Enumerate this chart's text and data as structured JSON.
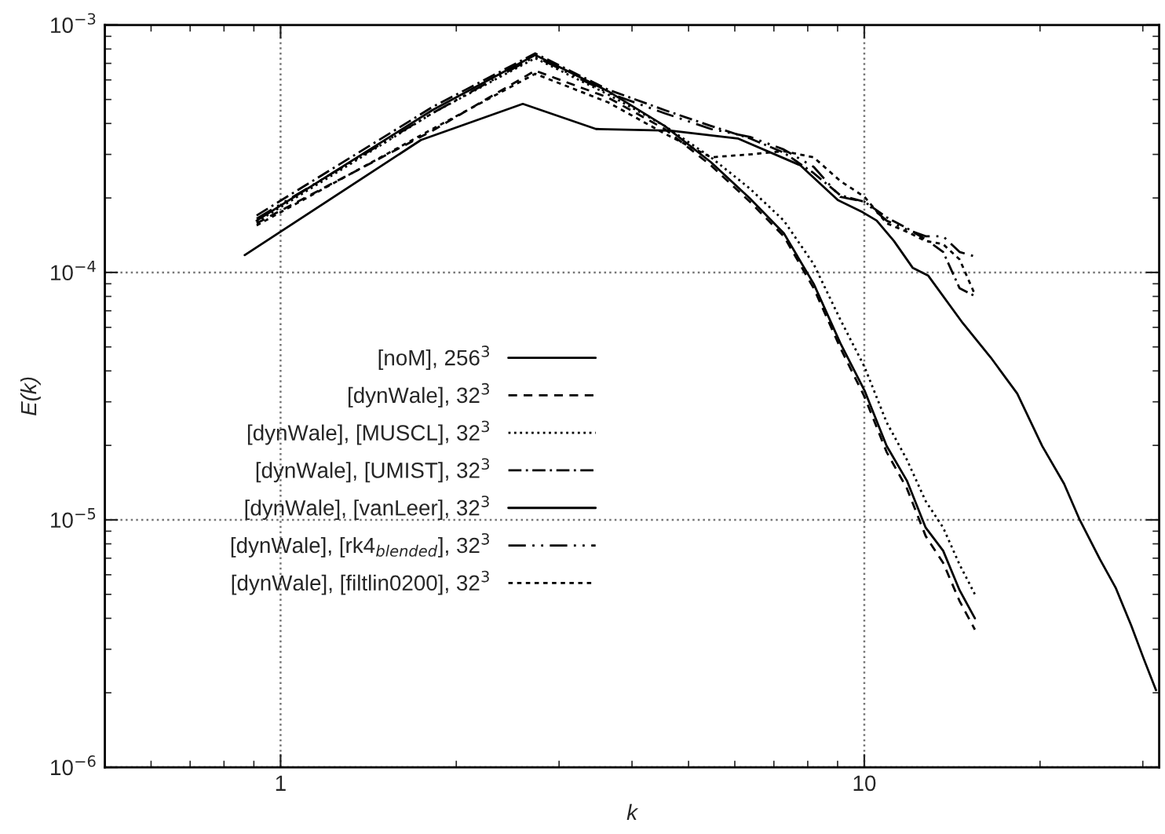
{
  "chart_data": {
    "type": "line",
    "xlabel": "k",
    "ylabel": "E(k)",
    "log": "xy",
    "grid": true,
    "legend": "left",
    "xlim": [
      0.5,
      32
    ],
    "ylim": [
      1e-06,
      0.001
    ],
    "xticks": [
      1,
      10
    ],
    "yticks": [
      {
        "value": 1e-06,
        "label": "10$^{−6}$"
      },
      {
        "value": 1e-05,
        "label": "10$^{−5}$"
      },
      {
        "value": 0.0001,
        "label": "10$^{−4}$"
      },
      {
        "value": 0.001,
        "label": "10$^{−3}$"
      }
    ],
    "x": [
      0.91,
      1.82,
      2.73,
      3.64,
      4.55,
      5.46,
      6.37,
      7.28,
      8.19,
      9.1,
      10.01,
      10.92,
      11.83,
      12.74,
      13.65,
      14.56,
      15.47
    ],
    "series": [
      {
        "name": "[noM], 256$^{3}$",
        "color": "#000000",
        "line_style": "solid",
        "x": [
          0.868,
          1.74,
          2.6,
          3.47,
          4.66,
          6.07,
          7.77,
          9.01,
          9.94,
          10.5,
          11.24,
          12.1,
          12.87,
          14.74,
          16.47,
          18.28,
          20.17,
          21.99,
          23.39,
          25.33,
          26.95,
          28.66,
          30.1,
          31.6
        ],
        "values": [
          0.0001175,
          0.000343,
          0.00048,
          0.00038,
          0.000374,
          0.000348,
          0.000271,
          0.000196,
          0.000175,
          0.000162,
          0.000134,
          0.0001045,
          9.7e-05,
          6.25e-05,
          4.53e-05,
          3.24e-05,
          1.99e-05,
          1.4e-05,
          1e-05,
          6.93e-06,
          5.32e-06,
          3.74e-06,
          2.75e-06,
          2.05e-06
        ]
      },
      {
        "name": "[dynWale], 32$^{3}$",
        "color": "#000000",
        "line_style": "dashed",
        "values": [
          0.000158,
          0.000374,
          0.000654,
          0.000509,
          0.00038,
          0.000271,
          0.000193,
          0.00014,
          8.64e-05,
          4.95e-05,
          3.14e-05,
          1.88e-05,
          1.34e-05,
          8.6e-06,
          6.7e-06,
          4.7e-06,
          3.6e-06
        ]
      },
      {
        "name": "[dynWale], [MUSCL], 32$^{3}$",
        "color": "#000000",
        "line_style": "dotted",
        "values": [
          0.00016,
          0.00044,
          0.000735,
          0.000524,
          0.000391,
          0.000292,
          0.000218,
          0.000162,
          0.000108,
          6.44e-05,
          4.15e-05,
          2.48e-05,
          1.75e-05,
          1.19e-05,
          9.3e-06,
          6.6e-06,
          5e-06
        ]
      },
      {
        "name": "[dynWale], [UMIST], 32$^{3}$",
        "color": "#000000",
        "line_style": "dashed",
        "values": [
          0.00017,
          0.000466,
          0.000768,
          0.000548,
          0.000453,
          0.000391,
          0.000348,
          0.000305,
          0.000252,
          0.000205,
          0.000193,
          0.000167,
          0.000151,
          0.000136,
          0.000121,
          8.64e-05,
          8.02e-05
        ]
      },
      {
        "name": "[dynWale], [vanLeer], 32$^{3}$",
        "color": "#000000",
        "line_style": "solid",
        "values": [
          0.000162,
          0.000453,
          0.000757,
          0.00054,
          0.000391,
          0.000279,
          0.000199,
          0.000144,
          9e-05,
          5.17e-05,
          3.33e-05,
          1.99e-05,
          1.44e-05,
          9.3e-06,
          7.5e-06,
          5.2e-06,
          4e-06
        ]
      },
      {
        "name": "[dynWale], [rk4$_{blended}$], 32$^{3}$",
        "color": "#000000",
        "line_style": "dashed",
        "values": [
          0.000165,
          0.00044,
          0.000746,
          0.000532,
          0.00044,
          0.00038,
          0.000353,
          0.000314,
          0.000267,
          0.000202,
          0.000193,
          0.000162,
          0.000149,
          0.00014,
          0.00014,
          0.000121,
          0.000116
        ]
      },
      {
        "name": "[dynWale], [filtlin0200], 32$^{3}$",
        "color": "#000000",
        "line_style": "dashed",
        "values": [
          0.000155,
          0.00038,
          0.000635,
          0.000487,
          0.000364,
          0.000292,
          0.0003,
          0.000309,
          0.000292,
          0.000234,
          0.000202,
          0.000158,
          0.000146,
          0.000134,
          0.00013,
          0.000113,
          8.14e-05
        ]
      }
    ]
  }
}
